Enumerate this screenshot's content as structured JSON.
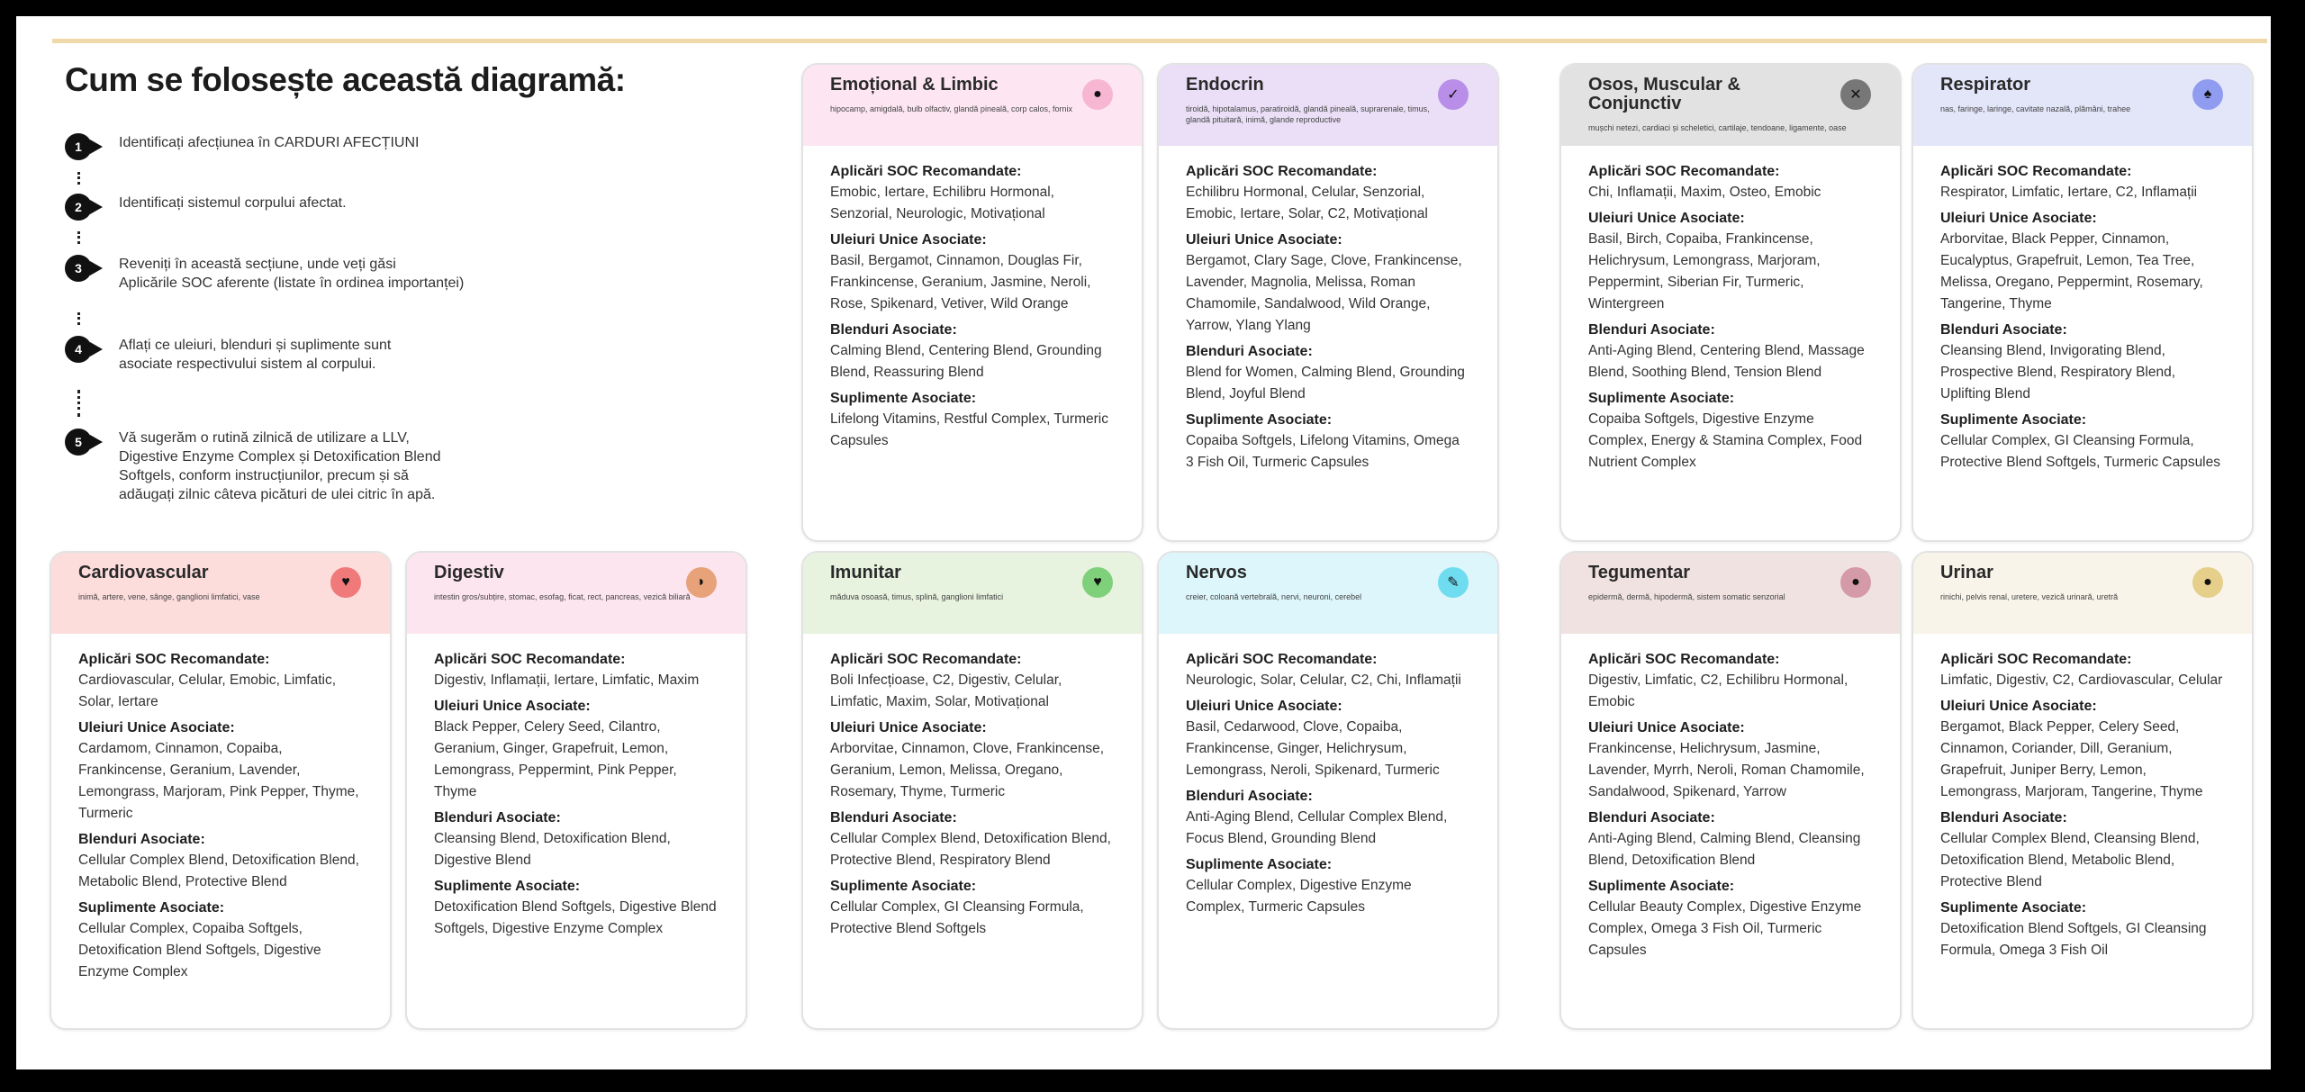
{
  "title": "Cum se folosește această diagramă:",
  "steps": [
    {
      "num": "1",
      "text": "Identificați afecțiunea în CARDURI AFECȚIUNI"
    },
    {
      "num": "2",
      "text": "Identificați sistemul corpului afectat."
    },
    {
      "num": "3",
      "text": "Reveniți în această secțiune, unde veți găsi\nAplicările SOC aferente (listate în ordinea importanței)"
    },
    {
      "num": "4",
      "text": "Aflați ce uleiuri, blenduri și suplimente sunt\nasociate respectivului sistem al corpului."
    },
    {
      "num": "5",
      "text": "Vă sugerăm o rutină zilnică de utilizare a LLV,\nDigestive Enzyme Complex și Detoxification Blend\nSoftgels, conform instrucțiunilor, precum și să\nadăugați zilnic câteva picături de ulei citric în apă."
    }
  ],
  "headings": {
    "soc": "Aplicări SOC Recomandate:",
    "oils": "Uleiuri Unice Asociate:",
    "blends": "Blenduri Asociate:",
    "supplements": "Suplimente Asociate:"
  },
  "cards": [
    {
      "id": "emotional",
      "title": "Emoțional & Limbic",
      "subtitle": "hipocamp, amigdală, bulb olfactiv, glandă pineală, corp calos, fornix",
      "header_color": "#fde6f1",
      "icon": "brain-icon",
      "icon_glyph": "●",
      "icon_color": "#f7b6d2",
      "soc": "Emobic, Iertare, Echilibru Hormonal, Senzorial, Neurologic, Motivațional",
      "oils": "Basil, Bergamot, Cinnamon, Douglas Fir, Frankincense, Geranium, Jasmine, Neroli, Rose, Spikenard, Vetiver, Wild Orange",
      "blends": "Calming Blend, Centering Blend, Grounding Blend, Reassuring Blend",
      "supplements": "Lifelong Vitamins, Restful Complex, Turmeric Capsules"
    },
    {
      "id": "endocrin",
      "title": "Endocrin",
      "subtitle": "tiroidă, hipotalamus, paratiroidă, glandă pineală, suprarenale, timus, glandă pituitară, inimă, glande reproductive",
      "header_color": "#eadff6",
      "icon": "gland-icon",
      "icon_glyph": "✓",
      "icon_color": "#b98ee8",
      "soc": "Echilibru Hormonal, Celular, Senzorial, Emobic, Iertare, Solar, C2, Motivațional",
      "oils": "Bergamot, Clary Sage, Clove, Frankincense, Lavender, Magnolia, Melissa, Roman Chamomile, Sandalwood, Wild Orange, Yarrow, Ylang Ylang",
      "blends": "Blend for Women, Calming Blend, Grounding Blend, Joyful Blend",
      "supplements": "Copaiba Softgels, Lifelong Vitamins, Omega 3 Fish Oil, Turmeric Capsules"
    },
    {
      "id": "osos",
      "title": "Osos, Muscular & Conjunctiv",
      "subtitle": "mușchi netezi, cardiaci și scheletici, cartilaje, tendoane, ligamente, oase",
      "header_color": "#e2e2e2",
      "icon": "bone-icon",
      "icon_glyph": "✕",
      "icon_color": "#777777",
      "soc": "Chi, Inflamații, Maxim, Osteo, Emobic",
      "oils": "Basil, Birch, Copaiba, Frankincense, Helichrysum, Lemongrass, Marjoram, Peppermint, Siberian Fir, Turmeric, Wintergreen",
      "blends": "Anti-Aging Blend, Centering Blend, Massage Blend, Soothing Blend, Tension Blend",
      "supplements": "Copaiba Softgels, Digestive Enzyme Complex, Energy & Stamina Complex, Food Nutrient Complex"
    },
    {
      "id": "respirator",
      "title": "Respirator",
      "subtitle": "nas, faringe, laringe, cavitate nazală, plămâni, trahee",
      "header_color": "#e3e5f9",
      "icon": "lungs-icon",
      "icon_glyph": "♠",
      "icon_color": "#8f9cf0",
      "soc": "Respirator, Limfatic, Iertare, C2, Inflamații",
      "oils": "Arborvitae, Black Pepper, Cinnamon, Eucalyptus, Grapefruit, Lemon, Tea Tree, Melissa, Oregano, Peppermint, Rosemary, Tangerine, Thyme",
      "blends": "Cleansing Blend, Invigorating Blend, Prospective Blend, Respiratory Blend, Uplifting Blend",
      "supplements": "Cellular Complex, GI Cleansing Formula, Protective Blend Softgels, Turmeric Capsules"
    },
    {
      "id": "cardiovascular",
      "title": "Cardiovascular",
      "subtitle": "inimă, artere, vene, sânge, ganglioni limfatici, vase",
      "header_color": "#fddcdc",
      "icon": "heart-icon",
      "icon_glyph": "♥",
      "icon_color": "#f07a7a",
      "soc": "Cardiovascular, Celular, Emobic, Limfatic, Solar, Iertare",
      "oils": "Cardamom, Cinnamon, Copaiba, Frankincense, Geranium, Lavender, Lemongrass, Marjoram, Pink Pepper, Thyme, Turmeric",
      "blends": "Cellular Complex Blend, Detoxification Blend, Metabolic Blend, Protective Blend",
      "supplements": "Cellular Complex, Copaiba Softgels, Detoxification Blend Softgels, Digestive Enzyme Complex"
    },
    {
      "id": "digestiv",
      "title": "Digestiv",
      "subtitle": "intestin gros/subțire, stomac, esofag, ficat, rect, pancreas, vezică biliară",
      "header_color": "#fde5ef",
      "icon": "stomach-icon",
      "icon_glyph": "◗",
      "icon_color": "#e8a27a",
      "soc": "Digestiv, Inflamații, Iertare, Limfatic, Maxim",
      "oils": "Black Pepper, Celery Seed, Cilantro, Geranium, Ginger, Grapefruit, Lemon, Lemongrass, Peppermint, Pink Pepper, Thyme",
      "blends": "Cleansing Blend, Detoxification Blend, Digestive Blend",
      "supplements": "Detoxification Blend Softgels, Digestive Blend Softgels, Digestive Enzyme Complex"
    },
    {
      "id": "imunitar",
      "title": "Imunitar",
      "subtitle": "măduva osoasă, timus, splină, ganglioni limfatici",
      "header_color": "#e7f3df",
      "icon": "shield-icon",
      "icon_glyph": "♥",
      "icon_color": "#7fd07a",
      "soc": "Boli Infecțioase, C2, Digestiv, Celular, Limfatic, Maxim, Solar, Motivațional",
      "oils": "Arborvitae, Cinnamon, Clove, Frankincense, Geranium, Lemon, Melissa, Oregano, Rosemary, Thyme, Turmeric",
      "blends": "Cellular Complex Blend, Detoxification Blend, Protective Blend, Respiratory Blend",
      "supplements": "Cellular Complex, GI Cleansing Formula, Protective Blend Softgels"
    },
    {
      "id": "nervos",
      "title": "Nervos",
      "subtitle": "creier, coloană vertebrală, nervi, neuroni, cerebel",
      "header_color": "#dcf6fb",
      "icon": "nerve-icon",
      "icon_glyph": "✎",
      "icon_color": "#6fdcf0",
      "soc": "Neurologic, Solar, Celular, C2, Chi, Inflamații",
      "oils": "Basil, Cedarwood, Clove, Copaiba, Frankincense, Ginger, Helichrysum, Lemongrass, Neroli, Spikenard, Turmeric",
      "blends": "Anti-Aging Blend, Cellular Complex Blend, Focus Blend, Grounding Blend",
      "supplements": "Cellular Complex, Digestive Enzyme Complex, Turmeric Capsules"
    },
    {
      "id": "tegumentar",
      "title": "Tegumentar",
      "subtitle": "epidermă, dermă, hipodermă, sistem somatic senzorial",
      "header_color": "#f1e2e2",
      "icon": "skin-icon",
      "icon_glyph": "●",
      "icon_color": "#d49aa8",
      "soc": "Digestiv, Limfatic, C2, Echilibru Hormonal, Emobic",
      "oils": "Frankincense, Helichrysum, Jasmine, Lavender, Myrrh, Neroli, Roman Chamomile, Sandalwood, Spikenard, Yarrow",
      "blends": "Anti-Aging Blend, Calming Blend, Cleansing Blend, Detoxification Blend",
      "supplements": "Cellular Beauty Complex, Digestive Enzyme Complex, Omega 3 Fish Oil, Turmeric Capsules"
    },
    {
      "id": "urinar",
      "title": "Urinar",
      "subtitle": "rinichi, pelvis renal, uretere, vezică urinară, uretră",
      "header_color": "#f8f4e9",
      "icon": "kidney-icon",
      "icon_glyph": "●",
      "icon_color": "#e6cf8a",
      "soc": "Limfatic, Digestiv, C2, Cardiovascular, Celular",
      "oils": "Bergamot, Black Pepper, Celery Seed, Cinnamon, Coriander, Dill, Geranium, Grapefruit, Juniper Berry, Lemon, Lemongrass, Marjoram, Tangerine, Thyme",
      "blends": "Cellular Complex Blend, Cleansing Blend, Detoxification Blend, Metabolic Blend, Protective Blend",
      "supplements": "Detoxification Blend Softgels, GI Cleansing Formula, Omega 3 Fish Oil"
    }
  ]
}
